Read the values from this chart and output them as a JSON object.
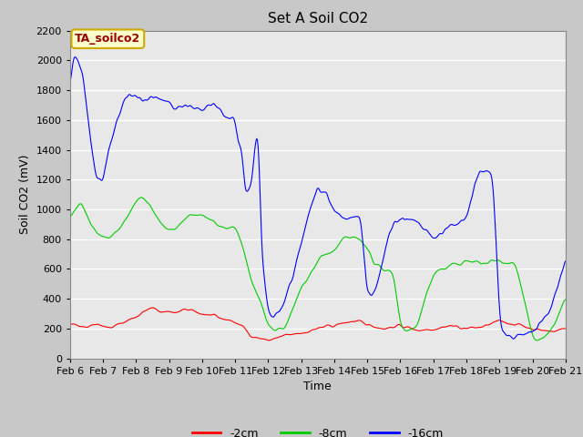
{
  "title": "Set A Soil CO2",
  "xlabel": "Time",
  "ylabel": "Soil CO2 (mV)",
  "ylim": [
    0,
    2200
  ],
  "xlim": [
    0,
    15
  ],
  "tick_labels": [
    "Feb 6",
    "Feb 7",
    "Feb 8",
    "Feb 9",
    "Feb 10",
    "Feb 11",
    "Feb 12",
    "Feb 13",
    "Feb 14",
    "Feb 15",
    "Feb 16",
    "Feb 17",
    "Feb 18",
    "Feb 19",
    "Feb 20",
    "Feb 21"
  ],
  "legend_labels": [
    "-2cm",
    "-8cm",
    "-16cm"
  ],
  "legend_colors": [
    "#ff0000",
    "#00cc00",
    "#0000ff"
  ],
  "line_colors": [
    "#ff0000",
    "#00cc00",
    "#0000ff"
  ],
  "annotation_text": "TA_soilco2",
  "annotation_bg": "#ffffcc",
  "annotation_border": "#ccaa00",
  "fig_bg": "#c8c8c8",
  "plot_bg": "#e8e8e8",
  "title_fontsize": 11,
  "axis_fontsize": 9,
  "tick_fontsize": 8
}
